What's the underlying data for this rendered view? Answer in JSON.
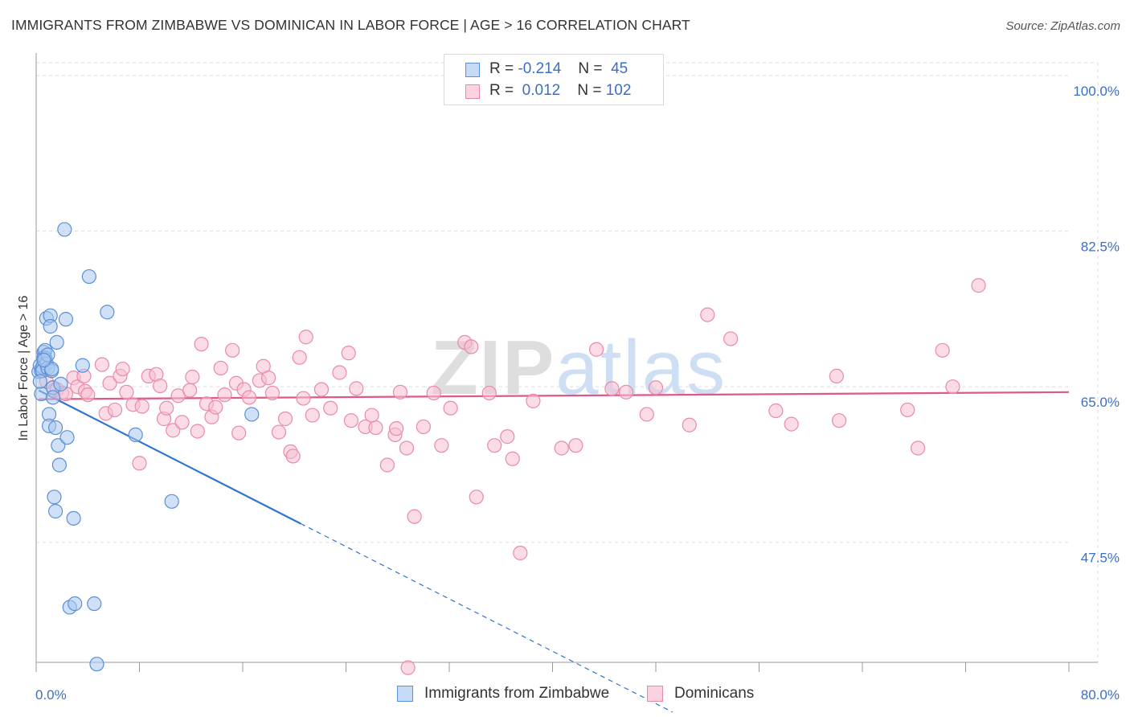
{
  "title": "IMMIGRANTS FROM ZIMBABWE VS DOMINICAN IN LABOR FORCE | AGE > 16 CORRELATION CHART",
  "source": "Source: ZipAtlas.com",
  "watermark": "ZIPatlas",
  "legend": {
    "zimbabwe": {
      "r_label": "R =",
      "r_value": "-0.214",
      "n_label": "N =",
      "n_value": "45"
    },
    "dominican": {
      "r_label": "R =",
      "r_value": "0.012",
      "n_label": "N =",
      "n_value": "102"
    }
  },
  "bottom_legend": {
    "zimbabwe": "Immigrants from Zimbabwe",
    "dominican": "Dominicans"
  },
  "colors": {
    "zimbabwe_fill": "#a9c8f0",
    "zimbabwe_stroke": "#5b8fd6",
    "zimbabwe_line": "#2e74cf",
    "dominican_fill": "#f7bfd1",
    "dominican_stroke": "#e88aa8",
    "dominican_line": "#e0578a",
    "tick_text": "#3b6fc7",
    "grid": "#dddddd"
  },
  "chart_data": {
    "type": "scatter",
    "ylabel": "In Labor Force | Age > 16",
    "x_tick_labels": [
      "0.0%",
      "80.0%"
    ],
    "y_tick_labels": [
      "100.0%",
      "82.5%",
      "65.0%",
      "47.5%"
    ],
    "y_ticks": [
      100.0,
      82.5,
      65.0,
      47.5
    ],
    "xlim": [
      0,
      80
    ],
    "ylim": [
      34,
      102
    ],
    "series": [
      {
        "key": "zimbabwe",
        "name": "Immigrants from Zimbabwe",
        "x": [
          0.2,
          0.3,
          0.4,
          0.4,
          0.5,
          0.5,
          0.6,
          0.6,
          0.7,
          0.7,
          0.8,
          0.8,
          0.9,
          0.9,
          1.0,
          1.0,
          1.1,
          1.1,
          1.2,
          1.2,
          1.3,
          1.3,
          1.4,
          1.5,
          1.5,
          1.6,
          1.7,
          1.8,
          1.9,
          2.2,
          2.3,
          2.4,
          2.6,
          2.9,
          3.0,
          3.6,
          4.1,
          4.5,
          4.7,
          5.5,
          7.7,
          10.5,
          16.7,
          0.3,
          0.6
        ],
        "y": [
          66.7,
          67.4,
          66.8,
          64.2,
          67.2,
          66.8,
          68.9,
          68.3,
          69.1,
          68.2,
          72.7,
          67.6,
          67.1,
          68.6,
          61.9,
          60.6,
          73.0,
          71.8,
          66.8,
          67.0,
          64.9,
          63.8,
          52.6,
          51.0,
          60.4,
          70.0,
          58.4,
          56.2,
          65.3,
          82.7,
          72.6,
          59.3,
          40.2,
          50.2,
          40.6,
          67.4,
          77.4,
          40.6,
          33.8,
          73.4,
          59.6,
          52.1,
          61.9,
          65.6,
          68.0
        ]
      },
      {
        "key": "dominican",
        "name": "Dominicans",
        "x": [
          0.8,
          1.4,
          1.6,
          2.0,
          2.3,
          2.9,
          3.2,
          3.7,
          3.8,
          4.0,
          5.1,
          5.4,
          5.7,
          6.1,
          6.5,
          6.7,
          7.0,
          7.5,
          8.0,
          8.2,
          8.7,
          9.3,
          9.6,
          9.9,
          10.1,
          10.6,
          11.0,
          11.3,
          11.9,
          12.1,
          12.5,
          12.8,
          13.2,
          13.6,
          13.9,
          14.3,
          14.6,
          15.2,
          15.5,
          15.7,
          16.1,
          16.5,
          17.3,
          17.6,
          18.0,
          18.3,
          18.8,
          19.3,
          19.7,
          20.4,
          20.7,
          20.9,
          21.4,
          22.1,
          22.8,
          23.5,
          24.2,
          24.4,
          24.8,
          25.5,
          26.3,
          27.2,
          27.8,
          28.2,
          28.7,
          29.3,
          30.0,
          30.8,
          31.4,
          32.1,
          33.2,
          33.7,
          34.1,
          35.1,
          35.5,
          36.5,
          36.9,
          37.5,
          38.5,
          40.7,
          41.8,
          43.4,
          44.6,
          45.7,
          47.3,
          48.0,
          50.6,
          52.0,
          53.8,
          57.3,
          58.5,
          62.2,
          67.5,
          68.3,
          70.2,
          71.0,
          73.0,
          62.0,
          28.8,
          27.9,
          19.9,
          26.0
        ],
        "y": [
          65.6,
          64.6,
          64.7,
          64.3,
          64.2,
          66.0,
          65.0,
          66.2,
          64.5,
          64.1,
          67.5,
          62.0,
          65.4,
          62.4,
          66.2,
          67.0,
          64.4,
          63.0,
          56.4,
          62.8,
          66.2,
          66.4,
          65.1,
          61.4,
          62.6,
          60.1,
          64.0,
          61.0,
          64.6,
          66.1,
          60.0,
          69.8,
          63.1,
          61.6,
          62.7,
          67.1,
          64.1,
          69.1,
          65.4,
          59.8,
          64.7,
          63.8,
          65.7,
          67.3,
          66.0,
          64.3,
          59.9,
          61.4,
          57.7,
          68.3,
          63.7,
          70.6,
          61.8,
          64.7,
          62.6,
          66.6,
          68.8,
          61.2,
          64.8,
          60.5,
          60.4,
          56.2,
          59.6,
          64.4,
          58.1,
          50.4,
          60.5,
          64.3,
          58.4,
          62.6,
          70.0,
          69.5,
          52.6,
          64.3,
          58.4,
          59.4,
          56.9,
          46.3,
          63.4,
          58.1,
          58.4,
          69.2,
          64.8,
          64.4,
          61.9,
          64.9,
          60.7,
          73.1,
          70.4,
          62.3,
          60.8,
          61.2,
          62.4,
          58.1,
          69.1,
          65.0,
          76.4,
          66.2,
          33.4,
          60.3,
          57.2,
          61.8
        ]
      }
    ],
    "trend_lines": [
      {
        "key": "zimbabwe",
        "solid": [
          [
            0.2,
            64.6
          ],
          [
            20.5,
            49.6
          ]
        ],
        "dashed": [
          [
            20.5,
            49.6
          ],
          [
            49.3,
            28.4
          ]
        ]
      },
      {
        "key": "dominican",
        "solid": [
          [
            0.2,
            63.6
          ],
          [
            80.0,
            64.4
          ]
        ]
      }
    ]
  }
}
